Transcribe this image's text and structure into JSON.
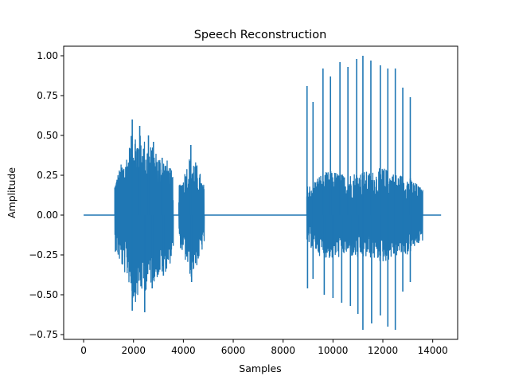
{
  "chart_data": {
    "type": "line",
    "title": "Speech Reconstruction",
    "xlabel": "Samples",
    "ylabel": "Amplitude",
    "xlim": [
      -800,
      15000
    ],
    "ylim": [
      -0.78,
      1.06
    ],
    "xticks": [
      0,
      2000,
      4000,
      6000,
      8000,
      10000,
      12000,
      14000
    ],
    "xtick_labels": [
      "0",
      "2000",
      "4000",
      "6000",
      "8000",
      "10000",
      "12000",
      "14000"
    ],
    "yticks": [
      -0.75,
      -0.5,
      -0.25,
      0.0,
      0.25,
      0.5,
      0.75,
      1.0
    ],
    "ytick_labels": [
      "−0.75",
      "−0.50",
      "−0.25",
      "0.00",
      "0.25",
      "0.50",
      "0.75",
      "1.00"
    ],
    "grid": false,
    "series": [
      {
        "color": "#1f77b4",
        "sample_count": 14336,
        "segments": [
          {
            "kind": "silence",
            "x": [
              0,
              1250
            ]
          },
          {
            "kind": "burst",
            "x": [
              1250,
              3600
            ],
            "envelope": [
              [
                1250,
                0.22
              ],
              [
                1500,
                0.32
              ],
              [
                1800,
                0.42
              ],
              [
                2000,
                0.56
              ],
              [
                2300,
                0.5
              ],
              [
                2600,
                0.46
              ],
              [
                2800,
                0.42
              ],
              [
                3100,
                0.38
              ],
              [
                3400,
                0.34
              ],
              [
                3600,
                0.24
              ]
            ],
            "peaks_high": [
              [
                1950,
                0.6
              ],
              [
                2250,
                0.56
              ],
              [
                2600,
                0.5
              ],
              [
                2800,
                0.46
              ],
              [
                3150,
                0.36
              ]
            ],
            "peaks_low": [
              [
                1950,
                -0.6
              ],
              [
                2450,
                -0.61
              ],
              [
                2750,
                -0.46
              ],
              [
                3200,
                -0.38
              ]
            ]
          },
          {
            "kind": "silence",
            "x": [
              3600,
              3820
            ]
          },
          {
            "kind": "burst",
            "x": [
              3820,
              4840
            ],
            "envelope": [
              [
                3820,
                0.18
              ],
              [
                4050,
                0.28
              ],
              [
                4300,
                0.4
              ],
              [
                4600,
                0.3
              ],
              [
                4840,
                0.18
              ]
            ],
            "peaks_high": [
              [
                4300,
                0.44
              ]
            ],
            "peaks_low": [
              [
                4330,
                -0.42
              ]
            ]
          },
          {
            "kind": "silence",
            "x": [
              4840,
              8950
            ]
          },
          {
            "kind": "burst",
            "x": [
              8950,
              13600
            ],
            "envelope": [
              [
                8950,
                0.18
              ],
              [
                9500,
                0.26
              ],
              [
                10000,
                0.28
              ],
              [
                10500,
                0.25
              ],
              [
                11000,
                0.28
              ],
              [
                11500,
                0.27
              ],
              [
                12000,
                0.3
              ],
              [
                12500,
                0.26
              ],
              [
                13000,
                0.25
              ],
              [
                13600,
                0.16
              ]
            ],
            "peaks_high": [
              [
                8960,
                0.81
              ],
              [
                9200,
                0.71
              ],
              [
                9600,
                0.92
              ],
              [
                9900,
                0.87
              ],
              [
                10280,
                0.96
              ],
              [
                10600,
                0.93
              ],
              [
                10950,
                0.98
              ],
              [
                11200,
                1.0
              ],
              [
                11520,
                0.97
              ],
              [
                11900,
                0.94
              ],
              [
                12200,
                0.92
              ],
              [
                12500,
                0.92
              ],
              [
                12800,
                0.8
              ],
              [
                13100,
                0.74
              ]
            ],
            "peaks_low": [
              [
                8980,
                -0.46
              ],
              [
                9200,
                -0.4
              ],
              [
                9650,
                -0.5
              ],
              [
                10000,
                -0.52
              ],
              [
                10350,
                -0.55
              ],
              [
                10700,
                -0.57
              ],
              [
                11000,
                -0.62
              ],
              [
                11200,
                -0.72
              ],
              [
                11550,
                -0.68
              ],
              [
                11900,
                -0.63
              ],
              [
                12200,
                -0.7
              ],
              [
                12500,
                -0.72
              ],
              [
                12800,
                -0.48
              ],
              [
                13100,
                -0.42
              ]
            ]
          },
          {
            "kind": "silence",
            "x": [
              13600,
              14336
            ]
          }
        ]
      }
    ]
  }
}
